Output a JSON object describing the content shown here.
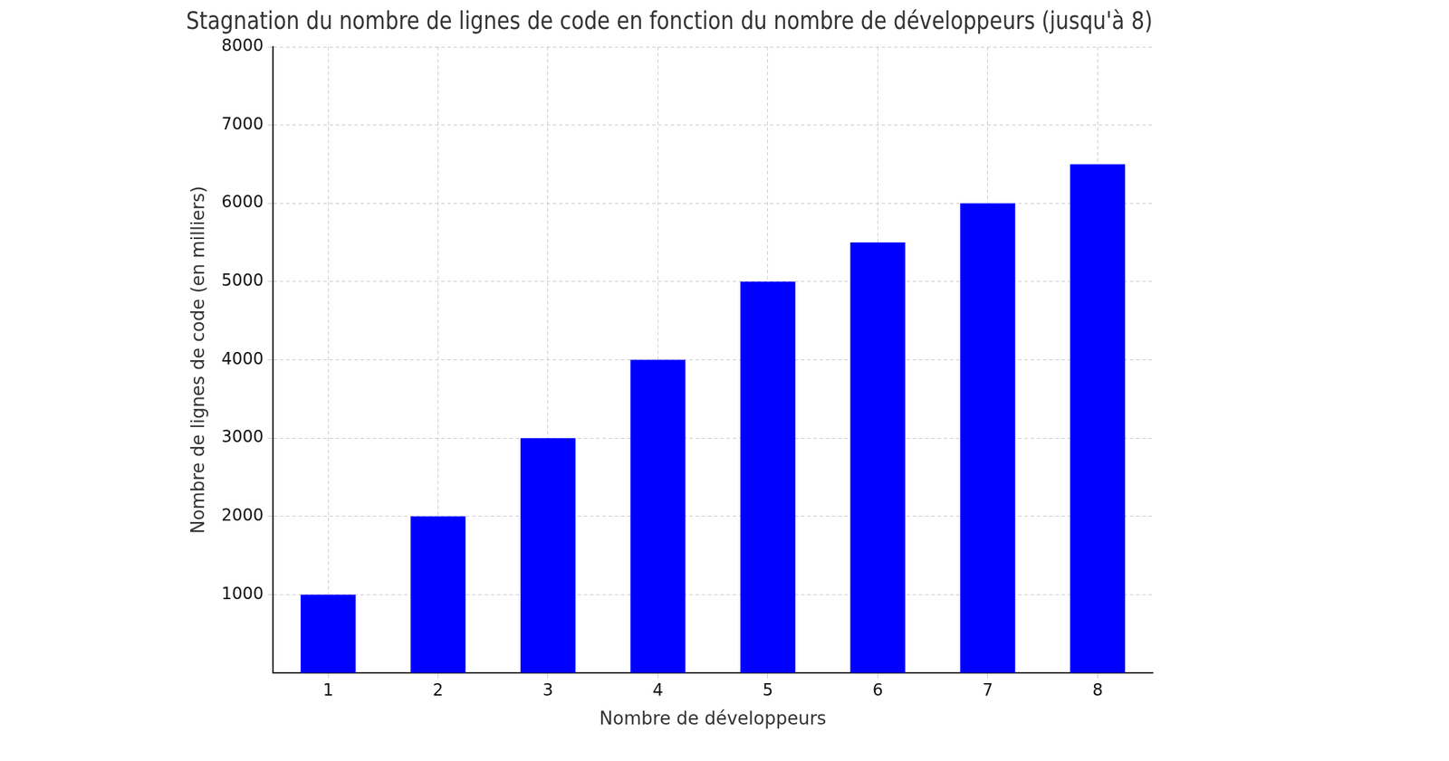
{
  "chart_data": {
    "type": "bar",
    "title": "Stagnation du nombre de lignes de code en fonction du nombre de développeurs (jusqu'à 8)",
    "x_label": "Nombre de développeurs",
    "y_label": "Nombre de lignes de code (en milliers)",
    "categories": [
      "1",
      "2",
      "3",
      "4",
      "5",
      "6",
      "7",
      "8"
    ],
    "values": [
      1000,
      2000,
      3000,
      4000,
      5000,
      5500,
      6000,
      6500
    ],
    "color": "#0000ff",
    "ylim": [
      0,
      8000
    ],
    "yticks": [
      1000,
      2000,
      3000,
      4000,
      5000,
      6000,
      7000,
      8000
    ],
    "grid": true
  }
}
